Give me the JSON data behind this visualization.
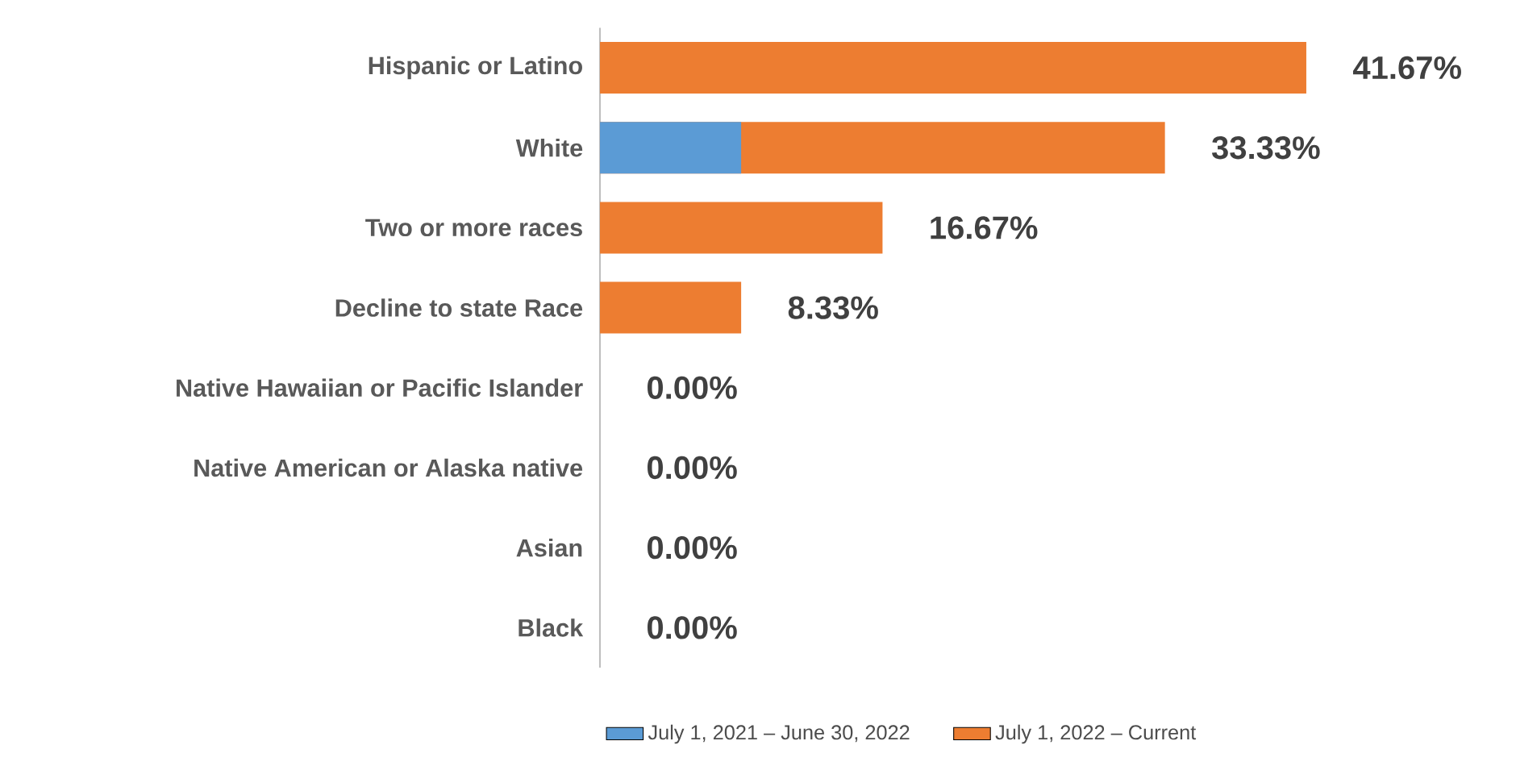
{
  "chart_data": {
    "type": "bar",
    "orientation": "horizontal",
    "legend": "bottom",
    "categories": [
      "Hispanic or Latino",
      "White",
      "Two or more races",
      "Decline to state Race",
      "Native Hawaiian or Pacific Islander",
      "Native American or Alaska native",
      "Asian",
      "Black"
    ],
    "series": [
      {
        "name": "July 1, 2021 – June 30, 2022",
        "color": "#5b9bd5",
        "values": [
          null,
          8.33,
          null,
          null,
          null,
          null,
          null,
          null
        ]
      },
      {
        "name": "July 1, 2022 – Current",
        "color": "#ed7d31",
        "values": [
          41.67,
          33.33,
          16.67,
          8.33,
          0,
          0,
          0,
          0
        ],
        "value_labels": [
          "41.67%",
          "33.33%",
          "16.67%",
          "8.33%",
          "0.00%",
          "0.00%",
          "0.00%",
          "0.00%"
        ]
      }
    ]
  }
}
